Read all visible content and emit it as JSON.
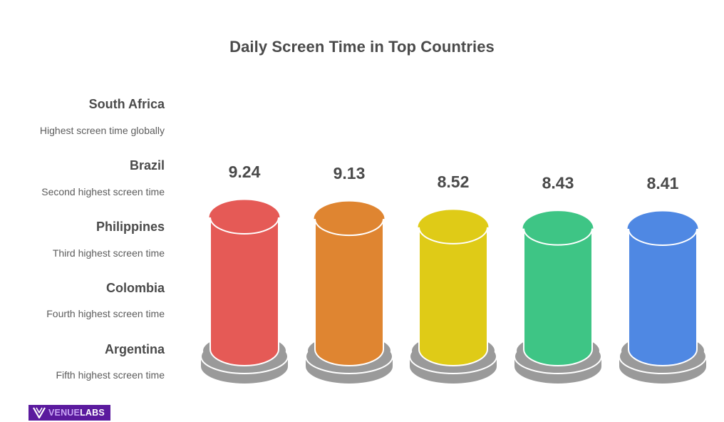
{
  "title": "Daily Screen Time in Top Countries",
  "legend_items": [
    {
      "country": "South Africa",
      "description": "Highest screen time globally"
    },
    {
      "country": "Brazil",
      "description": "Second highest screen time"
    },
    {
      "country": "Philippines",
      "description": "Third highest screen time"
    },
    {
      "country": "Colombia",
      "description": "Fourth highest screen time"
    },
    {
      "country": "Argentina",
      "description": "Fifth highest screen time"
    }
  ],
  "bars": [
    {
      "value": "9.24",
      "color": "#e55a56"
    },
    {
      "value": "9.13",
      "color": "#df8531"
    },
    {
      "value": "8.52",
      "color": "#dfcb17"
    },
    {
      "value": "8.43",
      "color": "#3ec585"
    },
    {
      "value": "8.41",
      "color": "#4f88e3"
    }
  ],
  "base_color": "#9a9a9a",
  "logo": {
    "part1": "VENUE",
    "part2": "LABS"
  },
  "chart_data": {
    "type": "bar",
    "title": "Daily Screen Time in Top Countries",
    "categories": [
      "South Africa",
      "Brazil",
      "Philippines",
      "Colombia",
      "Argentina"
    ],
    "values": [
      9.24,
      9.13,
      8.52,
      8.43,
      8.41
    ],
    "annotations": [
      "Highest screen time globally",
      "Second highest screen time",
      "Third highest screen time",
      "Fourth highest screen time",
      "Fifth highest screen time"
    ],
    "xlabel": "",
    "ylabel": "",
    "grid": false,
    "legend_position": "left",
    "style": "3d-cylinder"
  }
}
